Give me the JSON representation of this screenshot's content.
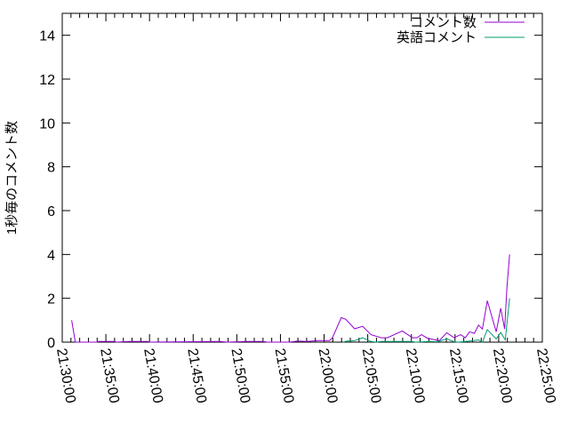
{
  "chart_data": {
    "type": "line",
    "title": "",
    "xlabel": "",
    "ylabel": "1秒毎のコメント数",
    "xlim": [
      "21:30:00",
      "22:25:00"
    ],
    "ylim": [
      0,
      15
    ],
    "xticks": [
      "21:30:00",
      "21:35:00",
      "21:40:00",
      "21:45:00",
      "21:50:00",
      "21:55:00",
      "22:00:00",
      "22:05:00",
      "22:10:00",
      "22:15:00",
      "22:20:00",
      "22:25:00"
    ],
    "yticks": [
      "0",
      "2",
      "4",
      "6",
      "8",
      "10",
      "12",
      "14"
    ],
    "grid": false,
    "legend": "top-right",
    "series": [
      {
        "name": "コメント数",
        "color": "#9400d3",
        "points": [
          [
            "21:31:05",
            1.0
          ],
          [
            "21:31:30",
            0
          ],
          [
            "21:34:00",
            0
          ],
          [
            "21:34:10",
            0.03
          ],
          [
            "21:36:00",
            0.03
          ],
          [
            "21:36:10",
            0
          ],
          [
            "21:37:40",
            0.03
          ],
          [
            "21:39:50",
            0.03
          ],
          [
            "21:40:00",
            0
          ],
          [
            "21:48:00",
            0.03
          ],
          [
            "21:49:00",
            0
          ],
          [
            "21:51:00",
            0.03
          ],
          [
            "21:53:00",
            0.03
          ],
          [
            "21:53:30",
            0
          ],
          [
            "21:56:00",
            0
          ],
          [
            "21:57:00",
            0.05
          ],
          [
            "21:58:00",
            0.03
          ],
          [
            "21:59:15",
            0.07
          ],
          [
            "22:00:37",
            0.07
          ],
          [
            "22:00:57",
            0.2
          ],
          [
            "22:01:58",
            1.12
          ],
          [
            "22:02:29",
            1.04
          ],
          [
            "22:03:30",
            0.61
          ],
          [
            "22:04:25",
            0.72
          ],
          [
            "22:05:22",
            0.34
          ],
          [
            "22:06:34",
            0.2
          ],
          [
            "22:07:15",
            0.2
          ],
          [
            "22:08:57",
            0.51
          ],
          [
            "22:10:08",
            0.2
          ],
          [
            "22:10:38",
            0.2
          ],
          [
            "22:11:09",
            0.34
          ],
          [
            "22:11:50",
            0.18
          ],
          [
            "22:13:12",
            0.07
          ],
          [
            "22:14:03",
            0.43
          ],
          [
            "22:14:54",
            0.2
          ],
          [
            "22:15:38",
            0.34
          ],
          [
            "22:16:11",
            0.2
          ],
          [
            "22:16:40",
            0.47
          ],
          [
            "22:17:13",
            0.4
          ],
          [
            "22:17:41",
            0.78
          ],
          [
            "22:18:08",
            0.6
          ],
          [
            "22:18:42",
            1.89
          ],
          [
            "22:19:43",
            0.47
          ],
          [
            "22:20:14",
            1.55
          ],
          [
            "22:20:41",
            0.6
          ],
          [
            "22:20:57",
            2.5
          ],
          [
            "22:21:15",
            4.0
          ]
        ]
      },
      {
        "name": "英語コメント",
        "color": "#009e73",
        "points": [
          [
            "22:02:10",
            0
          ],
          [
            "22:02:40",
            0.05
          ],
          [
            "22:03:30",
            0.07
          ],
          [
            "22:04:25",
            0.2
          ],
          [
            "22:05:22",
            0.03
          ],
          [
            "22:06:00",
            0
          ],
          [
            "22:06:30",
            0.03
          ],
          [
            "22:10:00",
            0.03
          ],
          [
            "22:10:30",
            0
          ],
          [
            "22:12:00",
            0.03
          ],
          [
            "22:13:00",
            0.02
          ],
          [
            "22:14:03",
            0.15
          ],
          [
            "22:14:54",
            0.02
          ],
          [
            "22:15:20",
            0
          ],
          [
            "22:16:40",
            0.05
          ],
          [
            "22:17:41",
            0.1
          ],
          [
            "22:18:08",
            0
          ],
          [
            "22:18:42",
            0.57
          ],
          [
            "22:19:43",
            0.14
          ],
          [
            "22:20:14",
            0.44
          ],
          [
            "22:20:45",
            0.1
          ],
          [
            "22:21:15",
            2.0
          ]
        ]
      }
    ]
  }
}
